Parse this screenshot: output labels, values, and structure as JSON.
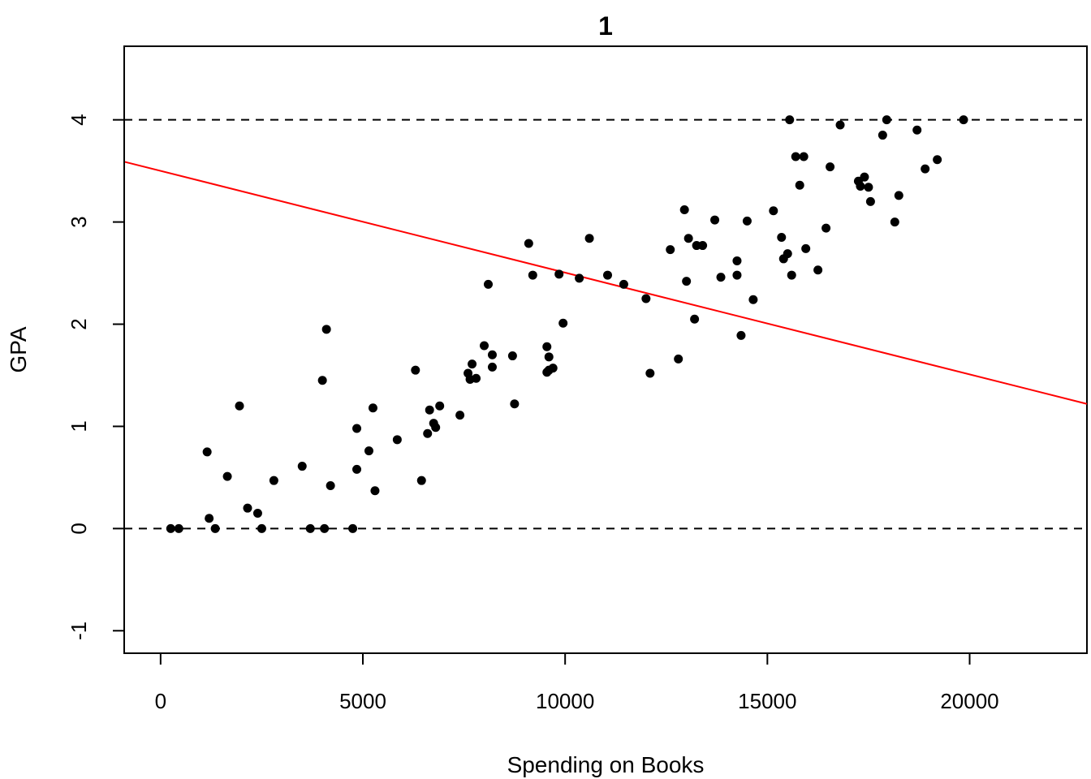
{
  "chart_data": {
    "type": "scatter",
    "title": "1",
    "xlabel": "Spending on Books",
    "ylabel": "GPA",
    "xlim": [
      -900,
      22900
    ],
    "ylim": [
      -1.22,
      4.72
    ],
    "x_ticks": [
      0,
      5000,
      10000,
      15000,
      20000
    ],
    "y_ticks": [
      -1,
      0,
      1,
      2,
      3,
      4
    ],
    "x_tick_labels": [
      "0",
      "5000",
      "10000",
      "15000",
      "20000"
    ],
    "y_tick_labels": [
      "-1",
      "0",
      "1",
      "2",
      "3",
      "4"
    ],
    "grid": false,
    "legend": "none",
    "colors": {
      "points": "#000000",
      "fit_line": "#ff0000",
      "reference_lines": "#000000"
    },
    "reference_lines": [
      {
        "y": 0,
        "style": "dashed"
      },
      {
        "y": 4,
        "style": "dashed"
      }
    ],
    "fit_line": {
      "x": [
        -900,
        22900
      ],
      "y": [
        3.59,
        1.22
      ]
    },
    "points": [
      [
        250,
        0
      ],
      [
        450,
        0
      ],
      [
        1150,
        0.75
      ],
      [
        1200,
        0.1
      ],
      [
        1350,
        0
      ],
      [
        1650,
        0.51
      ],
      [
        1950,
        1.2
      ],
      [
        2150,
        0.2
      ],
      [
        2400,
        0.15
      ],
      [
        2500,
        0
      ],
      [
        2800,
        0.47
      ],
      [
        3500,
        0.61
      ],
      [
        3700,
        0
      ],
      [
        4000,
        1.45
      ],
      [
        4050,
        0
      ],
      [
        4100,
        1.95
      ],
      [
        4200,
        0.42
      ],
      [
        4750,
        0
      ],
      [
        4850,
        0.58
      ],
      [
        4850,
        0.98
      ],
      [
        5150,
        0.76
      ],
      [
        5250,
        1.18
      ],
      [
        5300,
        0.37
      ],
      [
        5850,
        0.87
      ],
      [
        6300,
        1.55
      ],
      [
        6450,
        0.47
      ],
      [
        6600,
        0.93
      ],
      [
        6650,
        1.16
      ],
      [
        6750,
        1.03
      ],
      [
        6800,
        0.99
      ],
      [
        6900,
        1.2
      ],
      [
        7400,
        1.11
      ],
      [
        7600,
        1.52
      ],
      [
        7650,
        1.46
      ],
      [
        7700,
        1.61
      ],
      [
        7800,
        1.47
      ],
      [
        8000,
        1.79
      ],
      [
        8100,
        2.39
      ],
      [
        8200,
        1.58
      ],
      [
        8200,
        1.7
      ],
      [
        8700,
        1.69
      ],
      [
        8750,
        1.22
      ],
      [
        9100,
        2.79
      ],
      [
        9200,
        2.48
      ],
      [
        9550,
        1.78
      ],
      [
        9550,
        1.53
      ],
      [
        9600,
        1.68
      ],
      [
        9600,
        1.55
      ],
      [
        9700,
        1.57
      ],
      [
        9850,
        2.49
      ],
      [
        9950,
        2.01
      ],
      [
        10350,
        2.45
      ],
      [
        10600,
        2.84
      ],
      [
        11050,
        2.48
      ],
      [
        11450,
        2.39
      ],
      [
        12000,
        2.25
      ],
      [
        12100,
        1.52
      ],
      [
        12600,
        2.73
      ],
      [
        12800,
        1.66
      ],
      [
        12950,
        3.12
      ],
      [
        13000,
        2.42
      ],
      [
        13050,
        2.84
      ],
      [
        13200,
        2.05
      ],
      [
        13250,
        2.77
      ],
      [
        13400,
        2.77
      ],
      [
        13700,
        3.02
      ],
      [
        13850,
        2.46
      ],
      [
        14250,
        2.62
      ],
      [
        14250,
        2.48
      ],
      [
        14350,
        1.89
      ],
      [
        14500,
        3.01
      ],
      [
        14650,
        2.24
      ],
      [
        15150,
        3.11
      ],
      [
        15350,
        2.85
      ],
      [
        15400,
        2.64
      ],
      [
        15500,
        2.69
      ],
      [
        15550,
        4
      ],
      [
        15600,
        2.48
      ],
      [
        15700,
        3.64
      ],
      [
        15800,
        3.36
      ],
      [
        15900,
        3.64
      ],
      [
        15950,
        2.74
      ],
      [
        16250,
        2.53
      ],
      [
        16450,
        2.94
      ],
      [
        16550,
        3.54
      ],
      [
        16800,
        3.95
      ],
      [
        17250,
        3.4
      ],
      [
        17300,
        3.35
      ],
      [
        17400,
        3.44
      ],
      [
        17500,
        3.34
      ],
      [
        17550,
        3.2
      ],
      [
        17850,
        3.85
      ],
      [
        17950,
        4
      ],
      [
        18150,
        3
      ],
      [
        18250,
        3.26
      ],
      [
        18700,
        3.9
      ],
      [
        18900,
        3.52
      ],
      [
        19200,
        3.61
      ],
      [
        19850,
        4
      ]
    ]
  }
}
